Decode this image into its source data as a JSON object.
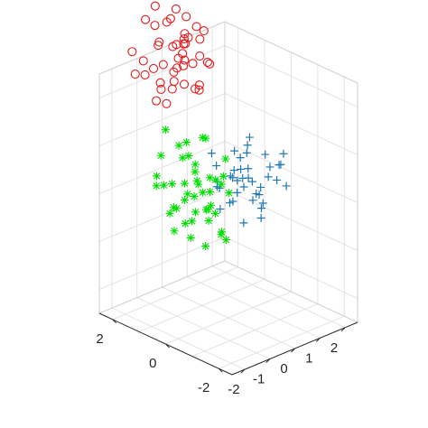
{
  "chart_data": {
    "type": "scatter",
    "dimensions": 3,
    "title": "",
    "xlabel": "",
    "ylabel": "",
    "zlabel": "",
    "grid": true,
    "x_axis": {
      "ticks": [
        -2,
        -1,
        0,
        1,
        2
      ],
      "tick_labels": [
        "-2",
        "-1",
        "0",
        "1",
        "2"
      ]
    },
    "y_axis": {
      "ticks": [
        -2,
        0,
        2
      ],
      "tick_labels": [
        "-2",
        "0",
        "2"
      ]
    },
    "series": [
      {
        "marker": "circle",
        "color": "#e31a1c",
        "points": [
          [
            0.4,
            3.2,
            1.8
          ],
          [
            0.9,
            3.5,
            2.1
          ],
          [
            1.1,
            3.1,
            1.6
          ],
          [
            0.7,
            2.6,
            1.9
          ],
          [
            1.3,
            2.9,
            2.3
          ],
          [
            1.6,
            3.4,
            1.7
          ],
          [
            0.2,
            2.8,
            2.5
          ],
          [
            0.8,
            3.9,
            1.4
          ],
          [
            1.5,
            2.5,
            2.0
          ],
          [
            1.0,
            2.2,
            1.5
          ],
          [
            1.9,
            3.0,
            2.4
          ],
          [
            0.5,
            3.6,
            2.7
          ],
          [
            1.2,
            3.7,
            1.2
          ],
          [
            1.7,
            2.7,
            1.3
          ],
          [
            0.3,
            2.4,
            1.6
          ],
          [
            1.4,
            3.3,
            2.8
          ],
          [
            0.6,
            2.9,
            1.1
          ],
          [
            2.1,
            3.5,
            2.0
          ],
          [
            0.9,
            2.5,
            2.6
          ],
          [
            1.8,
            3.8,
            1.8
          ],
          [
            1.1,
            3.0,
            2.2
          ],
          [
            0.1,
            3.3,
            2.0
          ],
          [
            2.0,
            2.6,
            1.7
          ],
          [
            1.3,
            4.0,
            2.3
          ],
          [
            0.7,
            3.2,
            1.3
          ],
          [
            1.6,
            2.3,
            1.9
          ],
          [
            0.4,
            2.7,
            2.9
          ],
          [
            1.0,
            3.4,
            1.7
          ],
          [
            1.5,
            3.6,
            2.5
          ],
          [
            0.8,
            2.1,
            2.1
          ],
          [
            2.3,
            3.1,
            2.2
          ],
          [
            1.2,
            2.8,
            1.4
          ],
          [
            0.5,
            4.1,
            1.9
          ],
          [
            1.7,
            3.2,
            2.6
          ],
          [
            0.9,
            2.9,
            1.5
          ],
          [
            1.4,
            2.4,
            2.4
          ],
          [
            0.2,
            3.7,
            1.6
          ],
          [
            1.9,
            2.9,
            1.1
          ],
          [
            1.1,
            3.8,
            2.8
          ],
          [
            0.6,
            2.3,
            2.3
          ],
          [
            1.8,
            3.4,
            1.5
          ],
          [
            1.0,
            2.6,
            2.0
          ],
          [
            0.3,
            3.0,
            1.2
          ],
          [
            1.5,
            3.1,
            2.1
          ],
          [
            2.2,
            3.7,
            1.8
          ]
        ]
      },
      {
        "marker": "plus",
        "color": "#1f77b4",
        "points": [
          [
            0.6,
            0.4,
            -0.3
          ],
          [
            1.2,
            0.8,
            -0.1
          ],
          [
            0.9,
            0.1,
            0.2
          ],
          [
            1.5,
            0.5,
            -0.5
          ],
          [
            0.3,
            0.7,
            0.1
          ],
          [
            1.8,
            0.2,
            0.0
          ],
          [
            1.1,
            -0.2,
            -0.4
          ],
          [
            0.7,
            1.0,
            -0.2
          ],
          [
            2.1,
            0.6,
            0.3
          ],
          [
            1.4,
            1.1,
            0.4
          ],
          [
            0.5,
            -0.1,
            -0.6
          ],
          [
            1.9,
            0.9,
            -0.3
          ],
          [
            1.0,
            0.5,
            0.5
          ],
          [
            2.4,
            0.3,
            0.1
          ],
          [
            0.8,
            -0.4,
            0.0
          ],
          [
            1.6,
            1.3,
            -0.1
          ],
          [
            0.4,
            0.3,
            0.3
          ],
          [
            1.3,
            0.0,
            -0.7
          ],
          [
            2.0,
            1.2,
            0.2
          ],
          [
            0.9,
            0.8,
            -0.5
          ],
          [
            1.7,
            -0.3,
            0.4
          ],
          [
            1.2,
            0.6,
            0.0
          ],
          [
            0.6,
            1.2,
            0.5
          ],
          [
            2.2,
            -0.1,
            -0.2
          ],
          [
            1.5,
            0.7,
            0.6
          ],
          [
            0.2,
            0.5,
            -0.4
          ],
          [
            1.0,
            1.4,
            0.1
          ],
          [
            1.8,
            0.4,
            -0.6
          ],
          [
            0.7,
            0.2,
            0.4
          ],
          [
            2.5,
            0.8,
            -0.1
          ],
          [
            1.4,
            -0.5,
            0.2
          ],
          [
            0.5,
            0.9,
            -0.1
          ],
          [
            1.1,
            0.3,
            0.3
          ],
          [
            1.9,
            1.0,
            0.6
          ],
          [
            0.8,
            0.6,
            0.1
          ],
          [
            1.3,
            0.9,
            -0.4
          ],
          [
            2.3,
            0.1,
            0.4
          ],
          [
            1.6,
            0.3,
            -0.2
          ],
          [
            0.4,
            -0.2,
            0.2
          ],
          [
            1.0,
            -0.1,
            -0.1
          ]
        ]
      },
      {
        "marker": "asterisk",
        "color": "#00e000",
        "points": [
          [
            -0.8,
            0.5,
            0.6
          ],
          [
            -0.3,
            0.9,
            0.2
          ],
          [
            -1.1,
            0.2,
            -0.1
          ],
          [
            -0.6,
            1.3,
            0.9
          ],
          [
            -0.1,
            0.4,
            -0.4
          ],
          [
            -1.4,
            0.8,
            0.4
          ],
          [
            -0.5,
            -0.2,
            -0.6
          ],
          [
            -0.9,
            1.1,
            -0.3
          ],
          [
            0.0,
            1.5,
            0.5
          ],
          [
            -1.2,
            -0.3,
            0.1
          ],
          [
            -0.4,
            0.6,
            1.2
          ],
          [
            -0.7,
            0.0,
            0.0
          ],
          [
            -1.6,
            1.2,
            0.3
          ],
          [
            -0.2,
            -0.1,
            -0.8
          ],
          [
            -1.0,
            1.6,
            0.7
          ],
          [
            -0.5,
            0.3,
            -0.2
          ],
          [
            -1.3,
            0.5,
            1.0
          ],
          [
            -0.8,
            -0.5,
            -0.4
          ],
          [
            0.1,
            0.8,
            0.2
          ],
          [
            -1.5,
            0.0,
            -0.5
          ],
          [
            -0.6,
            1.8,
            1.1
          ],
          [
            -0.3,
            0.2,
            0.4
          ],
          [
            -1.1,
            1.0,
            -0.7
          ],
          [
            -0.9,
            0.4,
            0.8
          ],
          [
            -0.2,
            1.1,
            -0.2
          ],
          [
            -1.7,
            0.6,
            -0.1
          ],
          [
            -0.4,
            -0.4,
            0.3
          ],
          [
            -1.0,
            0.7,
            0.0
          ],
          [
            -0.7,
            1.4,
            -0.4
          ],
          [
            0.2,
            0.3,
            0.7
          ],
          [
            -1.3,
            -0.1,
            0.6
          ],
          [
            -0.5,
            0.9,
            -0.6
          ],
          [
            -0.8,
            0.1,
            1.4
          ],
          [
            -1.2,
            1.3,
            0.2
          ],
          [
            -0.1,
            0.6,
            0.0
          ],
          [
            -0.6,
            -0.3,
            0.5
          ],
          [
            -1.4,
            0.3,
            -0.3
          ],
          [
            -0.9,
            0.8,
            0.3
          ],
          [
            -0.3,
            1.3,
            0.9
          ],
          [
            -1.0,
            -0.2,
            -0.2
          ],
          [
            -0.5,
            0.5,
            0.1
          ],
          [
            -1.8,
            1.0,
            0.6
          ],
          [
            -0.7,
            0.2,
            -0.9
          ],
          [
            -0.2,
            0.0,
            0.5
          ],
          [
            -1.1,
            0.5,
            0.2
          ]
        ]
      }
    ]
  }
}
